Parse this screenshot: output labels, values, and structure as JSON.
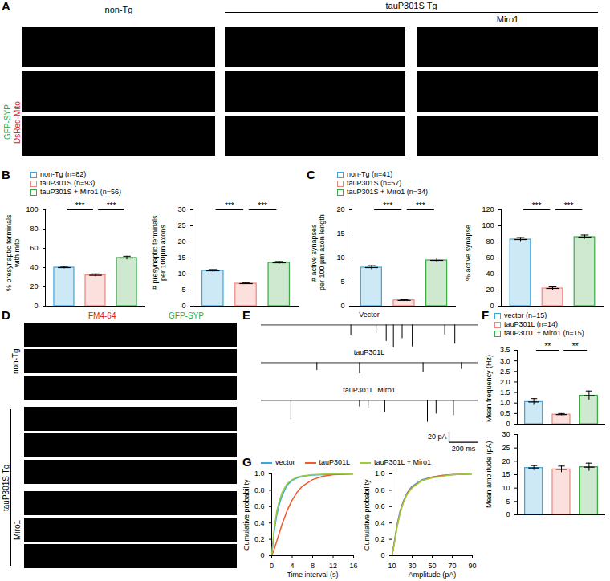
{
  "images": [
    {
      "panel": "A",
      "column_label": "non-Tg",
      "group_label": "tauP301S Tg",
      "sub_label": "Miro1",
      "channels": [
        {
          "name": "GFP-SYP",
          "color": "#22b14c"
        },
        {
          "name": "DsRed-Mito",
          "color": "#e0201b"
        }
      ]
    },
    {
      "panel": "D",
      "row_label": "non-Tg",
      "group_label": "tauP301S Tg",
      "sub_label": "Miro1",
      "channels": [
        {
          "name": "FM4-64",
          "color": "#e0201b"
        },
        {
          "name": "GFP-SYP",
          "color": "#22b14c"
        }
      ]
    }
  ],
  "chart_data": [
    {
      "panel": "B",
      "type": "bar",
      "legend": "top",
      "tick_labels": "y",
      "categories": [
        "non-Tg (n=82)",
        "tauP301S (n=93)",
        "tauP301S + Miro1 (n=56)"
      ],
      "colors": [
        "#3ba7dc",
        "#f0857d",
        "#3aa845"
      ],
      "subplots": [
        {
          "ylabel": "% presynaptic terminals\nwith mito",
          "values": [
            40,
            32,
            50
          ],
          "errors": [
            1.2,
            1.5,
            1.8
          ],
          "ylim": [
            0,
            100
          ],
          "yticks": [
            0,
            20,
            40,
            60,
            80,
            100
          ],
          "comparisons": [
            {
              "from": 0,
              "to": 1,
              "label": "***"
            },
            {
              "from": 1,
              "to": 2,
              "label": "***"
            }
          ]
        },
        {
          "ylabel": "# presynaptic terminals\nper 100µm axons",
          "values": [
            11,
            7,
            13.5
          ],
          "errors": [
            0.4,
            0.2,
            0.4
          ],
          "ylim": [
            0,
            30
          ],
          "yticks": [
            0,
            5,
            10,
            15,
            20,
            25,
            30
          ],
          "comparisons": [
            {
              "from": 0,
              "to": 1,
              "label": "***"
            },
            {
              "from": 1,
              "to": 2,
              "label": "***"
            }
          ]
        }
      ]
    },
    {
      "panel": "C",
      "type": "bar",
      "legend": "top",
      "tick_labels": "y",
      "categories": [
        "non-Tg (n=41)",
        "tauP301S (n=57)",
        "tauP301S + Miro1 (n=34)"
      ],
      "colors": [
        "#3ba7dc",
        "#f0857d",
        "#3aa845"
      ],
      "subplots": [
        {
          "ylabel": "# active synapses\nper 100 µm axon length",
          "values": [
            8,
            1.2,
            9.5
          ],
          "errors": [
            0.4,
            0.15,
            0.5
          ],
          "ylim": [
            0,
            20
          ],
          "yticks": [
            0,
            5,
            10,
            15,
            20
          ],
          "comparisons": [
            {
              "from": 0,
              "to": 1,
              "label": "***"
            },
            {
              "from": 1,
              "to": 2,
              "label": "***"
            }
          ]
        },
        {
          "ylabel": "% active synapse",
          "values": [
            83,
            22,
            86
          ],
          "errors": [
            2.5,
            2,
            2.5
          ],
          "ylim": [
            0,
            120
          ],
          "yticks": [
            0,
            20,
            40,
            60,
            80,
            100,
            120
          ],
          "comparisons": [
            {
              "from": 0,
              "to": 1,
              "label": "***"
            },
            {
              "from": 1,
              "to": 2,
              "label": "***"
            }
          ]
        }
      ]
    },
    {
      "panel": "E",
      "type": "trace",
      "tick_labels": false,
      "xlim": [
        0,
        1500
      ],
      "ylim": [
        -45,
        8
      ],
      "series": [
        {
          "name": "Vector",
          "color": "#000000",
          "x": [
            620,
            795,
            865,
            915,
            975,
            1045,
            1270,
            1340
          ],
          "values": [
            -20,
            -15,
            -30,
            -42,
            -25,
            -40,
            -18,
            -35
          ]
        },
        {
          "name": "tauP301L",
          "color": "#000000",
          "x": [
            385,
            680,
            1120,
            1385
          ],
          "values": [
            -14,
            -20,
            -18,
            -12
          ]
        },
        {
          "name": "tauP301L  Miro1",
          "color": "#000000",
          "x": [
            205,
            680,
            740,
            855,
            1150,
            1210,
            1330
          ],
          "values": [
            -35,
            -12,
            -15,
            -22,
            -40,
            -25,
            -28
          ]
        }
      ],
      "scale_bar": {
        "x": 200,
        "x_label": "200 ms",
        "y": 20,
        "y_label": "20 pA"
      }
    },
    {
      "panel": "F",
      "type": "bar",
      "legend": "top",
      "tick_labels": "y",
      "categories": [
        "vector (n=15)",
        "tauP301L (n=14)",
        "tauP301L + Miro1 (n=15)"
      ],
      "colors": [
        "#3ba7dc",
        "#f0857d",
        "#3aa845"
      ],
      "subplots": [
        {
          "ylabel": "Mean frequency (Hz)",
          "values": [
            1.05,
            0.45,
            1.35
          ],
          "errors": [
            0.16,
            0.05,
            0.22
          ],
          "ylim": [
            0,
            3.5
          ],
          "yticks": [
            0,
            0.5,
            {
              "value": 1,
              "label": "1.0"
            },
            1.5,
            {
              "value": 2,
              "label": "2.0"
            },
            2.5,
            {
              "value": 3,
              "label": "3.0"
            },
            3.5
          ],
          "comparisons": [
            {
              "from": 0,
              "to": 1,
              "label": "**"
            },
            {
              "from": 1,
              "to": 2,
              "label": "**"
            }
          ]
        },
        {
          "ylabel": "Mean amplitude (pA)",
          "values": [
            17.5,
            17,
            17.8
          ],
          "errors": [
            0.9,
            1.2,
            1.5
          ],
          "ylim": [
            0,
            30
          ],
          "yticks": [
            0,
            5,
            10,
            15,
            20,
            25,
            30
          ],
          "comparisons": []
        }
      ]
    },
    {
      "panel": "G",
      "type": "line",
      "legend": "top",
      "series": [
        {
          "name": "vector",
          "color": "#3ba7dc"
        },
        {
          "name": "tauP301L",
          "color": "#ef5a2a"
        },
        {
          "name": "tauP301L + Miro1",
          "color": "#9ccc3c"
        }
      ],
      "subplots": [
        {
          "xlabel": "Time interval (s)",
          "ylabel": "Cumulative probability",
          "xlim": [
            0,
            16
          ],
          "xticks": [
            0,
            4,
            8,
            12,
            16
          ],
          "ylim": [
            0,
            1
          ],
          "yticks": [
            0,
            0.2,
            0.4,
            0.6,
            0.8,
            {
              "value": 1,
              "label": "1.0"
            }
          ],
          "x": [
            0,
            0.5,
            1,
            1.5,
            2,
            3,
            4,
            5,
            6,
            8,
            10,
            12,
            16
          ],
          "values": [
            [
              0,
              0.3,
              0.5,
              0.63,
              0.73,
              0.86,
              0.92,
              0.95,
              0.97,
              0.985,
              0.99,
              0.995,
              1
            ],
            [
              0,
              0.08,
              0.18,
              0.28,
              0.38,
              0.55,
              0.68,
              0.78,
              0.85,
              0.93,
              0.97,
              0.99,
              1
            ],
            [
              0,
              0.34,
              0.55,
              0.67,
              0.77,
              0.88,
              0.93,
              0.96,
              0.975,
              0.99,
              0.995,
              1,
              1
            ]
          ]
        },
        {
          "xlabel": "Amplitude (pA)",
          "ylabel": "Cumulative probability",
          "xlim": [
            10,
            90
          ],
          "xticks": [
            10,
            30,
            50,
            70,
            90
          ],
          "ylim": [
            0,
            1
          ],
          "yticks": [
            0,
            0.2,
            0.4,
            0.6,
            0.8,
            {
              "value": 1,
              "label": "1.0"
            }
          ],
          "x": [
            10,
            12,
            15,
            18,
            21,
            25,
            30,
            40,
            50,
            60,
            70,
            90
          ],
          "values": [
            [
              0,
              0.15,
              0.38,
              0.55,
              0.66,
              0.77,
              0.85,
              0.93,
              0.96,
              0.98,
              0.99,
              1
            ],
            [
              0,
              0.14,
              0.36,
              0.53,
              0.65,
              0.76,
              0.84,
              0.92,
              0.96,
              0.98,
              0.99,
              1
            ],
            [
              0,
              0.13,
              0.35,
              0.52,
              0.64,
              0.75,
              0.83,
              0.92,
              0.95,
              0.97,
              0.99,
              1
            ]
          ]
        }
      ]
    }
  ]
}
